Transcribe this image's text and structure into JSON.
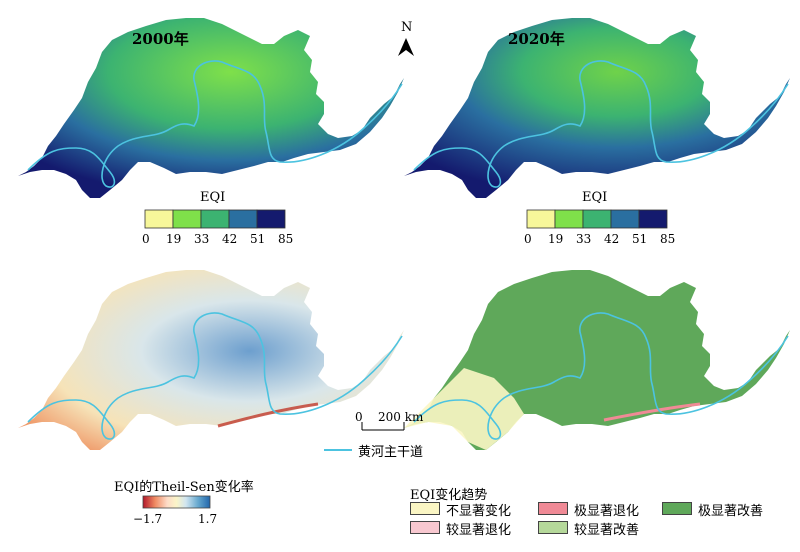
{
  "panels": {
    "top_left_title": "2000年",
    "top_right_title": "2020年"
  },
  "north_arrow": {
    "label": "N",
    "icon": "north-arrow-icon"
  },
  "eqi_legend": {
    "title": "EQI",
    "breaks": [
      "0",
      "19",
      "33",
      "42",
      "51",
      "85"
    ],
    "colors": [
      "#f7f79a",
      "#7fe04a",
      "#3cb371",
      "#2a6fa0",
      "#141a6e"
    ]
  },
  "scale_bar": {
    "label_zero": "0",
    "label_dist": "200 km"
  },
  "river_legend": {
    "label": "黄河主干道",
    "color": "#4cc3e0"
  },
  "theil_sen_legend": {
    "title": "EQI的Theil-Sen变化率",
    "min_label": "−1.7",
    "max_label": "1.7",
    "gradient": [
      "#b2182b",
      "#ef8a62",
      "#fddbc7",
      "#fbf5c8",
      "#d1e5f0",
      "#67a9cf",
      "#2166ac"
    ]
  },
  "trend_legend": {
    "title": "EQI变化趋势",
    "items": [
      {
        "label": "不显著变化",
        "color": "#fbf6c4"
      },
      {
        "label": "极显著退化",
        "color": "#f08a96"
      },
      {
        "label": "极显著改善",
        "color": "#5fa85a"
      },
      {
        "label": "较显著退化",
        "color": "#f8c8d0"
      },
      {
        "label": "较显著改善",
        "color": "#b5d89a"
      }
    ]
  }
}
